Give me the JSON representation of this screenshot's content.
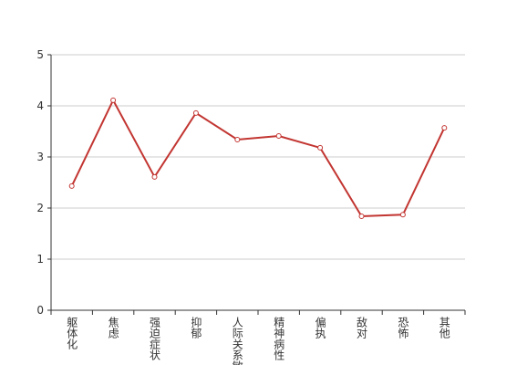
{
  "chart_data": {
    "type": "line",
    "categories": [
      "躯体化",
      "焦虑",
      "强迫症状",
      "抑郁",
      "人际关系敏感",
      "精神病性",
      "偏执",
      "敌对",
      "恐怖",
      "其他"
    ],
    "values": [
      2.43,
      4.11,
      2.61,
      3.86,
      3.34,
      3.41,
      3.18,
      1.84,
      1.87,
      3.57
    ],
    "color": "#c23531",
    "ylim": [
      0,
      5
    ],
    "yticks": [
      0,
      1,
      2,
      3,
      4,
      5
    ],
    "grid": true
  }
}
